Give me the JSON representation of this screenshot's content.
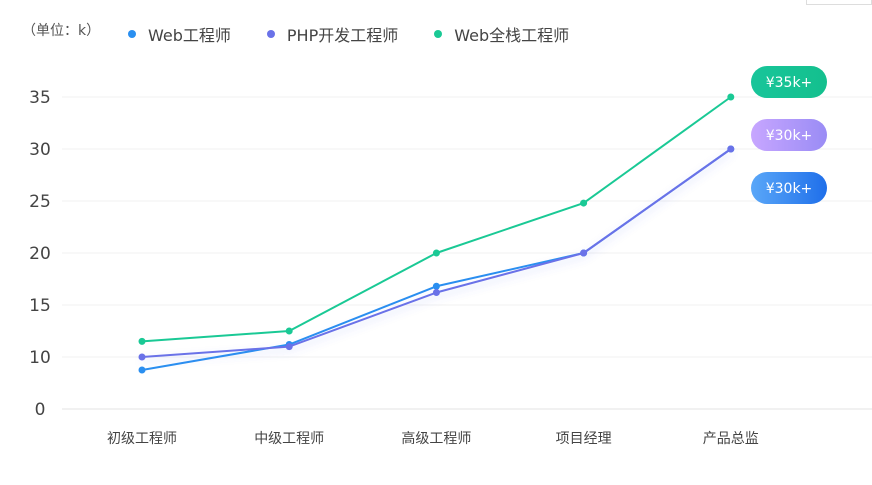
{
  "chart_data": {
    "type": "line",
    "unit_label": "（单位：k）",
    "categories": [
      "初级工程师",
      "中级工程师",
      "高级工程师",
      "项目经理",
      "产品总监"
    ],
    "ylim": [
      0,
      35
    ],
    "yticks": [
      0,
      10,
      15,
      20,
      25,
      30,
      35
    ],
    "grid": true,
    "legend_position": "top-left",
    "series": [
      {
        "name": "Web工程师",
        "values": [
          7.5,
          11.2,
          16.8,
          20,
          30
        ],
        "color": "#2a8ff0",
        "badge": "¥30k+",
        "badge_colors": [
          "#5aa7f8",
          "#1f6fea"
        ]
      },
      {
        "name": "PHP开发工程师",
        "values": [
          10,
          11,
          16.2,
          20,
          30
        ],
        "color": "#6a72e8",
        "badge": "¥30k+",
        "badge_colors": [
          "#c7a6ff",
          "#9a8cf5"
        ]
      },
      {
        "name": "Web全栈工程师",
        "values": [
          11.5,
          12.5,
          20,
          24.8,
          35
        ],
        "color": "#1ac995",
        "badge": "¥35k+",
        "badge_colors": [
          "#18c59a",
          "#14c08e"
        ]
      }
    ]
  }
}
